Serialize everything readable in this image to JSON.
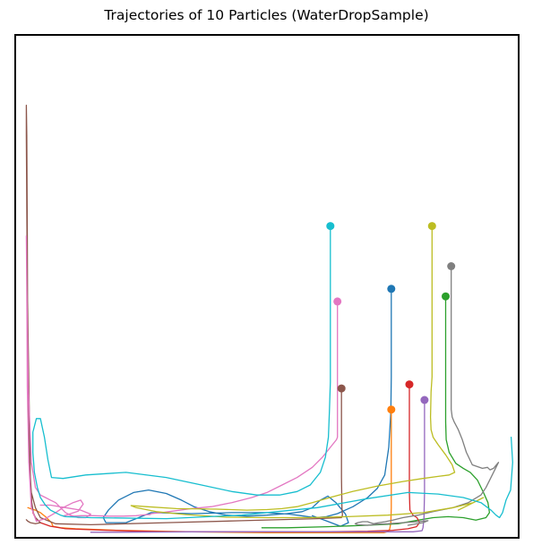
{
  "chart_data": {
    "type": "line",
    "title": "Trajectories of 10 Particles (WaterDropSample)",
    "xlabel": "",
    "ylabel": "",
    "axis_ticks": "hidden",
    "grid": false,
    "legend": "none",
    "xlim": [
      0,
      1
    ],
    "ylim": [
      0,
      1
    ],
    "series": [
      {
        "color": "#1f77b4",
        "x": [
          0.747,
          0.747,
          0.747,
          0.746,
          0.742,
          0.734,
          0.719,
          0.7,
          0.671,
          0.64,
          0.618,
          0.596,
          0.574,
          0.545,
          0.5,
          0.43,
          0.35,
          0.27,
          0.22,
          0.18,
          0.175,
          0.185,
          0.205,
          0.235,
          0.265,
          0.3,
          0.33,
          0.355,
          0.385,
          0.42,
          0.46,
          0.5,
          0.54,
          0.57,
          0.59,
          0.606,
          0.621,
          0.637,
          0.656,
          0.662,
          0.646,
          0.62,
          0.59
        ],
        "y": [
          0.495,
          0.42,
          0.32,
          0.25,
          0.18,
          0.125,
          0.098,
          0.08,
          0.062,
          0.048,
          0.042,
          0.04,
          0.043,
          0.047,
          0.05,
          0.05,
          0.048,
          0.05,
          0.03,
          0.03,
          0.04,
          0.055,
          0.075,
          0.09,
          0.095,
          0.088,
          0.075,
          0.062,
          0.052,
          0.045,
          0.043,
          0.045,
          0.048,
          0.052,
          0.06,
          0.075,
          0.083,
          0.07,
          0.047,
          0.03,
          0.023,
          0.033,
          0.044
        ]
      },
      {
        "color": "#ff7f0e",
        "x": [
          0.747,
          0.747,
          0.747,
          0.747,
          0.746,
          0.744,
          0.742,
          0.739,
          0.736,
          0.732,
          0.72,
          0.64,
          0.5,
          0.35,
          0.2,
          0.12,
          0.09,
          0.075,
          0.072,
          0.06,
          0.05,
          0.04,
          0.03,
          0.025
        ],
        "y": [
          0.255,
          0.2,
          0.13,
          0.06,
          0.03,
          0.018,
          0.014,
          0.012,
          0.011,
          0.01,
          0.01,
          0.01,
          0.01,
          0.012,
          0.015,
          0.018,
          0.02,
          0.023,
          0.03,
          0.042,
          0.05,
          0.055,
          0.058,
          0.06
        ]
      },
      {
        "color": "#2ca02c",
        "x": [
          0.855,
          0.855,
          0.855,
          0.856,
          0.862,
          0.875,
          0.89,
          0.904,
          0.918,
          0.93,
          0.939,
          0.942,
          0.935,
          0.915,
          0.89,
          0.86,
          0.83,
          0.8,
          0.76,
          0.7,
          0.62,
          0.54,
          0.49
        ],
        "y": [
          0.48,
          0.35,
          0.23,
          0.195,
          0.17,
          0.148,
          0.138,
          0.13,
          0.115,
          0.09,
          0.07,
          0.05,
          0.04,
          0.035,
          0.04,
          0.042,
          0.04,
          0.035,
          0.028,
          0.025,
          0.022,
          0.02,
          0.02
        ]
      },
      {
        "color": "#d62728",
        "x": [
          0.783,
          0.783,
          0.783,
          0.784,
          0.79,
          0.798,
          0.803,
          0.797,
          0.78,
          0.75,
          0.7,
          0.6,
          0.45,
          0.3,
          0.18,
          0.1,
          0.07,
          0.05,
          0.04,
          0.035
        ],
        "y": [
          0.305,
          0.2,
          0.09,
          0.055,
          0.045,
          0.04,
          0.03,
          0.022,
          0.018,
          0.015,
          0.013,
          0.012,
          0.012,
          0.012,
          0.015,
          0.018,
          0.023,
          0.03,
          0.04,
          0.05
        ]
      },
      {
        "color": "#9467bd",
        "x": [
          0.813,
          0.813,
          0.813,
          0.812,
          0.81,
          0.808,
          0.79,
          0.73,
          0.63,
          0.5,
          0.35,
          0.2,
          0.15
        ],
        "y": [
          0.274,
          0.2,
          0.09,
          0.04,
          0.02,
          0.014,
          0.012,
          0.012,
          0.012,
          0.012,
          0.012,
          0.011,
          0.011
        ]
      },
      {
        "color": "#8c564b",
        "x": [
          0.648,
          0.648,
          0.648,
          0.649,
          0.65,
          0.648,
          0.6,
          0.45,
          0.3,
          0.15,
          0.08,
          0.05,
          0.04,
          0.032,
          0.028,
          0.025,
          0.024,
          0.023,
          0.022,
          0.022,
          0.024,
          0.028,
          0.03,
          0.033,
          0.036,
          0.04,
          0.05,
          0.04,
          0.03,
          0.025,
          0.022
        ],
        "y": [
          0.297,
          0.2,
          0.12,
          0.06,
          0.045,
          0.04,
          0.038,
          0.034,
          0.03,
          0.026,
          0.028,
          0.04,
          0.06,
          0.09,
          0.15,
          0.3,
          0.6,
          0.8,
          0.86,
          0.8,
          0.5,
          0.25,
          0.12,
          0.07,
          0.05,
          0.04,
          0.03,
          0.028,
          0.03,
          0.033,
          0.036
        ]
      },
      {
        "color": "#e377c2",
        "x": [
          0.64,
          0.64,
          0.64,
          0.64,
          0.638,
          0.63,
          0.61,
          0.59,
          0.56,
          0.53,
          0.5,
          0.47,
          0.43,
          0.39,
          0.35,
          0.32,
          0.29,
          0.27,
          0.268,
          0.26,
          0.24,
          0.215,
          0.185,
          0.155,
          0.13,
          0.1,
          0.095,
          0.125,
          0.135,
          0.13,
          0.115,
          0.095,
          0.08,
          0.06,
          0.042,
          0.032,
          0.027,
          0.024,
          0.023,
          0.022,
          0.023,
          0.026,
          0.032,
          0.04,
          0.05,
          0.06,
          0.07,
          0.08,
          0.09,
          0.1,
          0.11,
          0.125,
          0.14,
          0.15,
          0.13,
          0.1,
          0.07,
          0.05
        ],
        "y": [
          0.47,
          0.35,
          0.25,
          0.2,
          0.195,
          0.185,
          0.16,
          0.14,
          0.12,
          0.105,
          0.09,
          0.08,
          0.07,
          0.062,
          0.058,
          0.054,
          0.05,
          0.048,
          0.046,
          0.046,
          0.044,
          0.043,
          0.043,
          0.044,
          0.044,
          0.042,
          0.043,
          0.053,
          0.067,
          0.075,
          0.07,
          0.06,
          0.05,
          0.038,
          0.033,
          0.06,
          0.15,
          0.3,
          0.5,
          0.6,
          0.5,
          0.3,
          0.15,
          0.1,
          0.085,
          0.08,
          0.075,
          0.07,
          0.06,
          0.05,
          0.045,
          0.04,
          0.04,
          0.047,
          0.055,
          0.06,
          0.065,
          0.065
        ]
      },
      {
        "color": "#7f7f7f",
        "x": [
          0.866,
          0.866,
          0.866,
          0.866,
          0.868,
          0.872,
          0.88,
          0.888,
          0.896,
          0.908,
          0.928,
          0.938,
          0.943,
          0.95,
          0.96,
          0.955,
          0.945,
          0.935,
          0.925,
          0.9,
          0.87,
          0.83,
          0.8,
          0.77,
          0.75,
          0.735,
          0.722,
          0.712,
          0.705,
          0.7,
          0.69,
          0.68,
          0.675,
          0.68,
          0.7,
          0.72,
          0.74,
          0.77,
          0.8,
          0.82,
          0.81,
          0.78
        ],
        "y": [
          0.54,
          0.42,
          0.32,
          0.255,
          0.24,
          0.23,
          0.215,
          0.195,
          0.17,
          0.145,
          0.138,
          0.14,
          0.135,
          0.138,
          0.15,
          0.14,
          0.12,
          0.1,
          0.085,
          0.07,
          0.06,
          0.052,
          0.045,
          0.04,
          0.035,
          0.032,
          0.03,
          0.028,
          0.03,
          0.032,
          0.032,
          0.03,
          0.028,
          0.026,
          0.025,
          0.027,
          0.028,
          0.03,
          0.032,
          0.034,
          0.03,
          0.025
        ]
      },
      {
        "color": "#bcbd22",
        "x": [
          0.828,
          0.828,
          0.828,
          0.828,
          0.826,
          0.825,
          0.826,
          0.83,
          0.84,
          0.855,
          0.868,
          0.873,
          0.862,
          0.84,
          0.81,
          0.77,
          0.72,
          0.67,
          0.625,
          0.59,
          0.56,
          0.53,
          0.5,
          0.46,
          0.4,
          0.32,
          0.26,
          0.23,
          0.24,
          0.28,
          0.34,
          0.42,
          0.5,
          0.58,
          0.66,
          0.74,
          0.81,
          0.87,
          0.91,
          0.93,
          0.9,
          0.88
        ],
        "y": [
          0.62,
          0.5,
          0.38,
          0.32,
          0.29,
          0.24,
          0.215,
          0.2,
          0.185,
          0.165,
          0.145,
          0.13,
          0.125,
          0.122,
          0.118,
          0.112,
          0.103,
          0.092,
          0.08,
          0.07,
          0.062,
          0.058,
          0.056,
          0.055,
          0.057,
          0.058,
          0.062,
          0.064,
          0.06,
          0.052,
          0.046,
          0.041,
          0.04,
          0.04,
          0.042,
          0.045,
          0.05,
          0.06,
          0.07,
          0.08,
          0.065,
          0.055
        ]
      },
      {
        "color": "#17becf",
        "x": [
          0.626,
          0.626,
          0.626,
          0.626,
          0.624,
          0.622,
          0.616,
          0.606,
          0.586,
          0.56,
          0.525,
          0.48,
          0.43,
          0.37,
          0.3,
          0.22,
          0.14,
          0.095,
          0.072,
          0.065,
          0.058,
          0.05,
          0.042,
          0.035,
          0.035,
          0.038,
          0.044,
          0.05,
          0.06,
          0.07,
          0.08,
          0.09,
          0.1,
          0.15,
          0.3,
          0.45,
          0.6,
          0.7,
          0.78,
          0.84,
          0.89,
          0.925,
          0.945,
          0.955,
          0.962,
          0.968,
          0.975,
          0.984,
          0.988,
          0.985
        ],
        "y": [
          0.62,
          0.48,
          0.35,
          0.31,
          0.25,
          0.2,
          0.16,
          0.13,
          0.105,
          0.092,
          0.085,
          0.085,
          0.092,
          0.105,
          0.12,
          0.13,
          0.125,
          0.118,
          0.12,
          0.155,
          0.2,
          0.237,
          0.237,
          0.21,
          0.17,
          0.13,
          0.1,
          0.08,
          0.065,
          0.055,
          0.05,
          0.045,
          0.042,
          0.04,
          0.038,
          0.045,
          0.06,
          0.078,
          0.09,
          0.087,
          0.08,
          0.07,
          0.055,
          0.045,
          0.04,
          0.05,
          0.075,
          0.095,
          0.15,
          0.2
        ]
      }
    ],
    "start_markers": [
      {
        "color": "#1f77b4",
        "x": 0.747,
        "y": 0.495
      },
      {
        "color": "#ff7f0e",
        "x": 0.747,
        "y": 0.255
      },
      {
        "color": "#2ca02c",
        "x": 0.855,
        "y": 0.48
      },
      {
        "color": "#d62728",
        "x": 0.783,
        "y": 0.305
      },
      {
        "color": "#9467bd",
        "x": 0.813,
        "y": 0.274
      },
      {
        "color": "#8c564b",
        "x": 0.648,
        "y": 0.297
      },
      {
        "color": "#e377c2",
        "x": 0.64,
        "y": 0.47
      },
      {
        "color": "#7f7f7f",
        "x": 0.866,
        "y": 0.54
      },
      {
        "color": "#bcbd22",
        "x": 0.828,
        "y": 0.62
      },
      {
        "color": "#17becf",
        "x": 0.626,
        "y": 0.62
      }
    ]
  }
}
